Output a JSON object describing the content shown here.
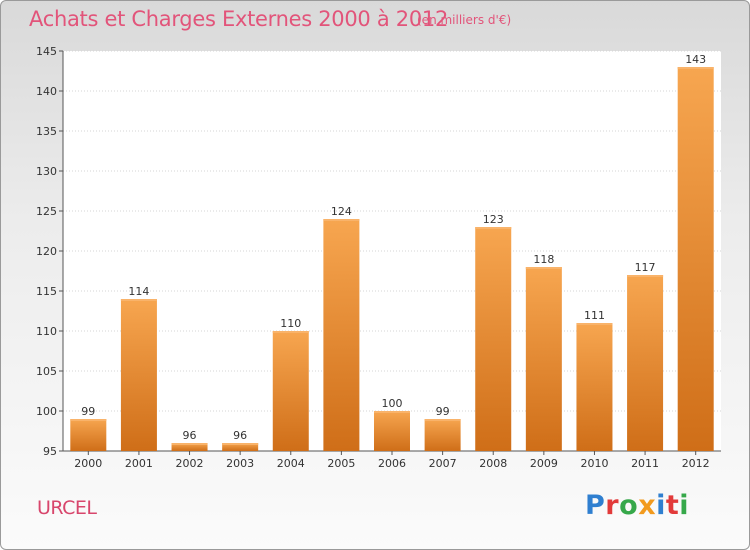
{
  "header": {
    "title": "Achats et Charges Externes 2000 à 2012",
    "subtitle": "(en milliers d'€)"
  },
  "footer": {
    "city": "URCEL",
    "logo_letters": [
      "P",
      "r",
      "o",
      "x",
      "i",
      "t",
      "i"
    ],
    "logo_colors": [
      "#2f7fd0",
      "#e23a3a",
      "#36a84a",
      "#f29a1e",
      "#2f7fd0",
      "#e23a3a",
      "#36a84a"
    ]
  },
  "chart_data": {
    "type": "bar",
    "categories": [
      "2000",
      "2001",
      "2002",
      "2003",
      "2004",
      "2005",
      "2006",
      "2007",
      "2008",
      "2009",
      "2010",
      "2011",
      "2012"
    ],
    "values": [
      99,
      114,
      96,
      96,
      110,
      124,
      100,
      99,
      123,
      118,
      111,
      117,
      143
    ],
    "ylim": [
      95,
      145
    ],
    "yticks": [
      95,
      100,
      105,
      110,
      115,
      120,
      125,
      130,
      135,
      140,
      145
    ],
    "grid": true,
    "bar_color": "#f08a2c"
  }
}
